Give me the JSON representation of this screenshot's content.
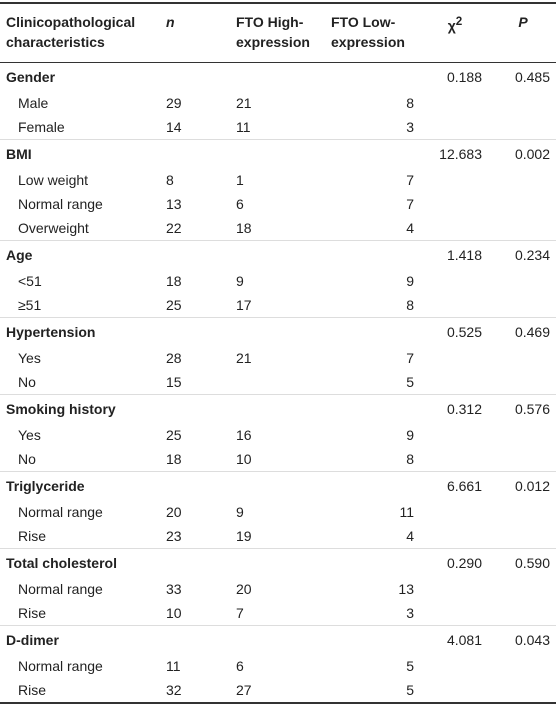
{
  "table": {
    "header": [
      "Clinicopathological characteristics",
      "n",
      "FTO High-expression",
      "FTO Low-expression",
      {
        "base": "χ",
        "sup": "2"
      },
      "P"
    ],
    "groups": [
      {
        "name": "Gender",
        "chi2": "0.188",
        "p": "0.485",
        "rows": [
          [
            "Male",
            "29",
            "21",
            "8"
          ],
          [
            "Female",
            "14",
            "11",
            "3"
          ]
        ]
      },
      {
        "name": "BMI",
        "chi2": "12.683",
        "p": "0.002",
        "rows": [
          [
            "Low weight",
            "8",
            "1",
            "7"
          ],
          [
            "Normal range",
            "13",
            "6",
            "7"
          ],
          [
            "Overweight",
            "22",
            "18",
            "4"
          ]
        ]
      },
      {
        "name": "Age",
        "chi2": "1.418",
        "p": "0.234",
        "rows": [
          [
            "<51",
            "18",
            "9",
            "9"
          ],
          [
            "≥51",
            "25",
            "17",
            "8"
          ]
        ]
      },
      {
        "name": "Hypertension",
        "chi2": "0.525",
        "p": "0.469",
        "rows": [
          [
            "Yes",
            "28",
            "21",
            "7"
          ],
          [
            "No",
            "15",
            null,
            "5"
          ]
        ]
      },
      {
        "name": "Smoking history",
        "chi2": "0.312",
        "p": "0.576",
        "rows": [
          [
            "Yes",
            "25",
            "16",
            "9"
          ],
          [
            "No",
            "18",
            "10",
            "8"
          ]
        ]
      },
      {
        "name": "Triglyceride",
        "chi2": "6.661",
        "p": "0.012",
        "rows": [
          [
            "Normal range",
            "20",
            "9",
            "11"
          ],
          [
            "Rise",
            "23",
            "19",
            "4"
          ]
        ]
      },
      {
        "name": "Total cholesterol",
        "chi2": "0.290",
        "p": "0.590",
        "rows": [
          [
            "Normal range",
            "33",
            "20",
            "13"
          ],
          [
            "Rise",
            "10",
            "7",
            "3"
          ]
        ]
      },
      {
        "name": "D-dimer",
        "chi2": "4.081",
        "p": "0.043",
        "rows": [
          [
            "Normal range",
            "11",
            "6",
            "5"
          ],
          [
            "Rise",
            "32",
            "27",
            "5"
          ]
        ]
      }
    ]
  }
}
